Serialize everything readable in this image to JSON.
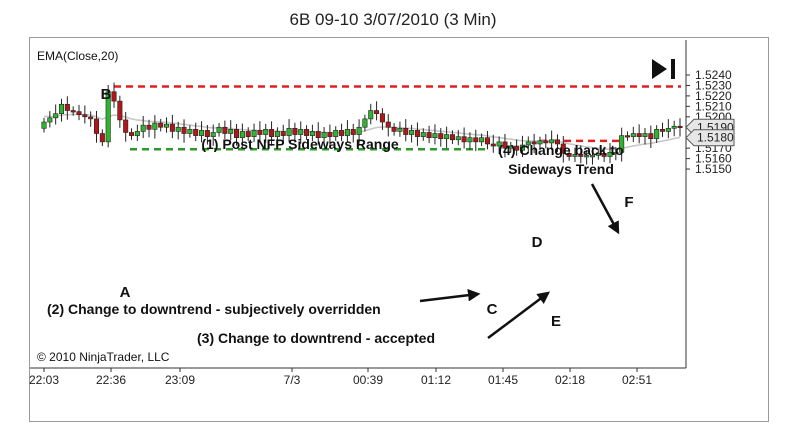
{
  "title": "6B 09-10  3/07/2010 (3 Min)",
  "indicator_label": "EMA(Close,20)",
  "copyright": "© 2010 NinjaTrader, LLC",
  "colors": {
    "up": "#2db52d",
    "down": "#b01818",
    "ema": "#c8c8c8",
    "dash_red": "#e02020",
    "dash_green": "#2a9a2a"
  },
  "icons": {
    "playback": "skip-to-end-icon"
  },
  "chart_data": {
    "type": "candlestick",
    "title": "6B 09-10  3/07/2010 (3 Min)",
    "ylim": [
      1.5142,
      1.5252
    ],
    "y_ticks": [
      "1.5240",
      "1.5230",
      "1.5220",
      "1.5210",
      "1.5200",
      "1.5190",
      "1.5180",
      "1.5170",
      "1.5160",
      "1.5150"
    ],
    "x_ticks": [
      "22:03",
      "22:36",
      "23:09",
      "7/3",
      "00:39",
      "01:12",
      "01:45",
      "02:18",
      "02:51"
    ],
    "price_markers": [
      "1.5190",
      "1.5180"
    ],
    "candles_close": [
      1.5195,
      1.5199,
      1.5203,
      1.5212,
      1.5206,
      1.5205,
      1.5202,
      1.52,
      1.5198,
      1.5184,
      1.5176,
      1.5224,
      1.5215,
      1.5197,
      1.5185,
      1.5182,
      1.5186,
      1.5192,
      1.5188,
      1.5194,
      1.519,
      1.5193,
      1.5186,
      1.519,
      1.5184,
      1.5188,
      1.5182,
      1.5187,
      1.5181,
      1.5185,
      1.519,
      1.5184,
      1.5188,
      1.518,
      1.5186,
      1.5181,
      1.5187,
      1.5183,
      1.5188,
      1.5181,
      1.5186,
      1.5182,
      1.5189,
      1.5183,
      1.5188,
      1.5182,
      1.5186,
      1.518,
      1.5185,
      1.5181,
      1.5187,
      1.5182,
      1.5188,
      1.5183,
      1.519,
      1.5198,
      1.5206,
      1.5203,
      1.5195,
      1.519,
      1.5186,
      1.5189,
      1.5183,
      1.5187,
      1.5181,
      1.5185,
      1.518,
      1.5184,
      1.5179,
      1.5183,
      1.5178,
      1.5181,
      1.5176,
      1.518,
      1.5176,
      1.518,
      1.5174,
      1.5172,
      1.5176,
      1.517,
      1.5172,
      1.5168,
      1.5173,
      1.5176,
      1.5174,
      1.5177,
      1.5175,
      1.5178,
      1.5174,
      1.5165,
      1.5162,
      1.5164,
      1.5162,
      1.5163,
      1.5163,
      1.5165,
      1.5162,
      1.5166,
      1.5166,
      1.5182,
      1.5181,
      1.5184,
      1.5181,
      1.5184,
      1.5179,
      1.5188,
      1.5186,
      1.5189,
      1.5191,
      1.519
    ],
    "ema_period": 20,
    "levels": [
      {
        "label": "B",
        "value": 1.5229,
        "color": "red",
        "from": "B",
        "to": "end"
      },
      {
        "label": "A",
        "value": 1.5169,
        "color": "green",
        "from": "A",
        "to": "C"
      },
      {
        "label": "D",
        "value": 1.5177,
        "color": "red",
        "from": "D",
        "to": "F"
      }
    ],
    "point_labels": [
      "A",
      "B",
      "C",
      "D",
      "E",
      "F"
    ],
    "annotations": [
      "(1) Post NFP Sideways Range",
      "(2) Change to downtrend - subjectively overridden",
      "(3) Change to downtrend - accepted",
      "(4) Change back to",
      "Sideways Trend"
    ]
  }
}
